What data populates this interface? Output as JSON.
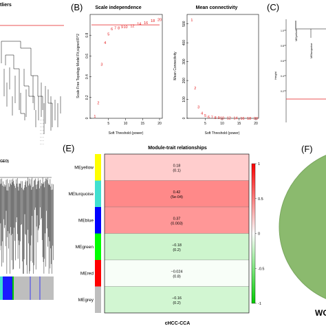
{
  "panels": {
    "a_partial_title": "tliers",
    "b_letter": "(B)",
    "c_letter": "(C)",
    "e_letter": "(E)",
    "f_letter": "(F)",
    "d_partial_label": "GEO)",
    "f_partial_label": "WG"
  },
  "chart_data": [
    {
      "type": "scatter",
      "title": "Scale independence",
      "xlabel": "Soft Threshold (power)",
      "ylabel": "Scale Free Topology Model Fit,signed R^2",
      "xlim": [
        0,
        20
      ],
      "ylim": [
        0,
        1
      ],
      "xticks": [
        5,
        10,
        15,
        20
      ],
      "yticks": [
        0.0,
        0.2,
        0.4,
        0.6,
        0.8
      ],
      "cutoff_line": 0.9,
      "cutoff_color": "#e41a1c",
      "point_color": "#e41a1c",
      "points": [
        {
          "x": 1,
          "y": 0.02,
          "label": "1"
        },
        {
          "x": 2,
          "y": 0.15,
          "label": "2"
        },
        {
          "x": 3,
          "y": 0.52,
          "label": "3"
        },
        {
          "x": 4,
          "y": 0.73,
          "label": "4"
        },
        {
          "x": 5,
          "y": 0.81,
          "label": "5"
        },
        {
          "x": 6,
          "y": 0.86,
          "label": "6"
        },
        {
          "x": 7,
          "y": 0.87,
          "label": "7"
        },
        {
          "x": 8,
          "y": 0.87,
          "label": "8"
        },
        {
          "x": 9,
          "y": 0.88,
          "label": "9"
        },
        {
          "x": 10,
          "y": 0.88,
          "label": "10"
        },
        {
          "x": 12,
          "y": 0.89,
          "label": "12"
        },
        {
          "x": 14,
          "y": 0.91,
          "label": "14"
        },
        {
          "x": 16,
          "y": 0.92,
          "label": "16"
        },
        {
          "x": 18,
          "y": 0.94,
          "label": "18"
        },
        {
          "x": 20,
          "y": 0.95,
          "label": "20"
        }
      ]
    },
    {
      "type": "scatter",
      "title": "Mean connectivity",
      "xlabel": "Soft Threshold (power)",
      "ylabel": "Mean Connectivity",
      "xlim": [
        0,
        20
      ],
      "ylim": [
        0,
        550
      ],
      "xticks": [
        5,
        10,
        15,
        20
      ],
      "yticks": [
        0,
        100,
        200,
        300,
        400,
        500
      ],
      "point_color": "#e41a1c",
      "points": [
        {
          "x": 1,
          "y": 520,
          "label": "1"
        },
        {
          "x": 2,
          "y": 160,
          "label": "2"
        },
        {
          "x": 3,
          "y": 60,
          "label": "3"
        },
        {
          "x": 4,
          "y": 28,
          "label": "4"
        },
        {
          "x": 5,
          "y": 14,
          "label": "5"
        },
        {
          "x": 6,
          "y": 8,
          "label": "6"
        },
        {
          "x": 7,
          "y": 5,
          "label": "7"
        },
        {
          "x": 8,
          "y": 4,
          "label": "8"
        },
        {
          "x": 9,
          "y": 3,
          "label": "9"
        },
        {
          "x": 10,
          "y": 2,
          "label": "10"
        },
        {
          "x": 12,
          "y": 1,
          "label": "12"
        },
        {
          "x": 14,
          "y": 1,
          "label": "14"
        },
        {
          "x": 16,
          "y": 0.5,
          "label": "16"
        },
        {
          "x": 18,
          "y": 0.5,
          "label": "18"
        },
        {
          "x": 20,
          "y": 0.3,
          "label": "20"
        }
      ]
    },
    {
      "type": "heatmap",
      "title": "Module-trait relationships",
      "xlabel": "cHCC-CCA",
      "color_scale": {
        "low": "#00cc00",
        "mid": "#ffffff",
        "high": "#ff0000",
        "min": -1,
        "max": 1
      },
      "legend_ticks": [
        "1",
        "0.5",
        "0",
        "-0.5",
        "-1"
      ],
      "rows": [
        {
          "module": "MEyellow",
          "swatch": "#ffff00",
          "corr": 0.18,
          "corr_text": "0.18",
          "p_text": "(0.1)"
        },
        {
          "module": "MEturquoise",
          "swatch": "#40e0d0",
          "corr": 0.42,
          "corr_text": "0.42",
          "p_text": "(5e-04)"
        },
        {
          "module": "MEblue",
          "swatch": "#0000ff",
          "corr": 0.37,
          "corr_text": "0.37",
          "p_text": "(0.003)"
        },
        {
          "module": "MEgreen",
          "swatch": "#00ff00",
          "corr": -0.18,
          "corr_text": "−0.18",
          "p_text": "(0.2)"
        },
        {
          "module": "MEred",
          "swatch": "#ff0000",
          "corr": -0.024,
          "corr_text": "−0.024",
          "p_text": "(0.8)"
        },
        {
          "module": "MEgrey",
          "swatch": "#bebebe",
          "corr": -0.16,
          "corr_text": "−0.16",
          "p_text": "(0.2)"
        }
      ]
    }
  ],
  "panel_c": {
    "ylabel": "Height",
    "labels": [
      "MEyellow",
      "MEturquoise"
    ],
    "cut_color": "#e41a1c"
  }
}
